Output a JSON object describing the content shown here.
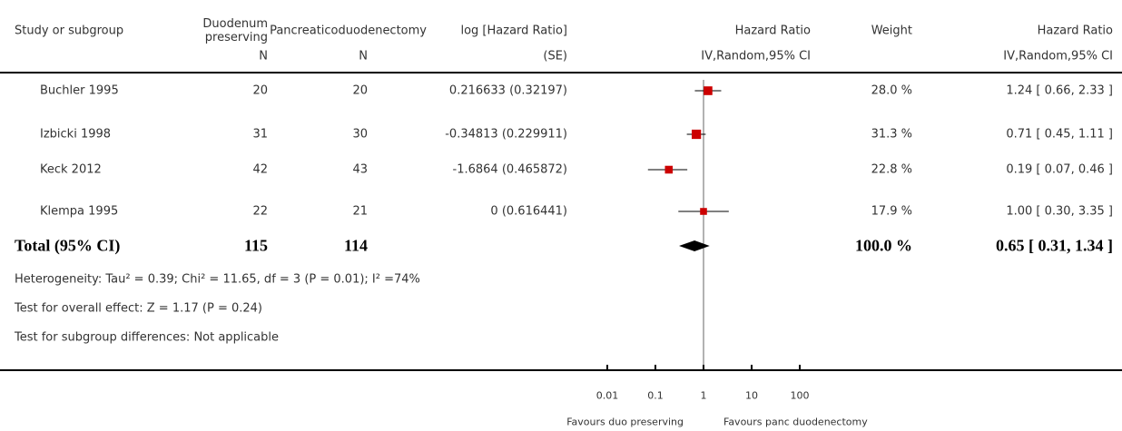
{
  "chart_data": {
    "type": "forest",
    "columns": {
      "study": "Study or subgroup",
      "group1": "Duodenum preserving",
      "group2": "Pancreaticoduodenectomy",
      "loghr": "log [Hazard Ratio]",
      "hr_plot": "Hazard Ratio",
      "weight": "Weight",
      "hr": "Hazard Ratio"
    },
    "subheaders": {
      "n1": "N",
      "n2": "N",
      "se": "(SE)",
      "plot_method": "IV,Random,95% CI",
      "hr_method": "IV,Random,95% CI"
    },
    "studies": [
      {
        "name": "Buchler 1995",
        "n1": 20,
        "n2": 20,
        "loghr_label": "0.216633 (0.32197)",
        "weight": 28.0,
        "weight_label": "28.0 %",
        "hr": 1.24,
        "ci": [
          0.66,
          2.33
        ],
        "hr_label": "1.24 [ 0.66, 2.33 ]"
      },
      {
        "name": "Izbicki 1998",
        "n1": 31,
        "n2": 30,
        "loghr_label": "-0.34813 (0.229911)",
        "weight": 31.3,
        "weight_label": "31.3 %",
        "hr": 0.71,
        "ci": [
          0.45,
          1.11
        ],
        "hr_label": "0.71 [ 0.45, 1.11 ]"
      },
      {
        "name": "Keck 2012",
        "n1": 42,
        "n2": 43,
        "loghr_label": "-1.6864 (0.465872)",
        "weight": 22.8,
        "weight_label": "22.8 %",
        "hr": 0.19,
        "ci": [
          0.07,
          0.46
        ],
        "hr_label": "0.19 [ 0.07, 0.46 ]"
      },
      {
        "name": "Klempa 1995",
        "n1": 22,
        "n2": 21,
        "loghr_label": "0 (0.616441)",
        "weight": 17.9,
        "weight_label": "17.9 %",
        "hr": 1.0,
        "ci": [
          0.3,
          3.35
        ],
        "hr_label": "1.00 [ 0.30, 3.35 ]"
      }
    ],
    "total": {
      "name": "Total (95% CI)",
      "n1": 115,
      "n2": 114,
      "weight": 100.0,
      "weight_label": "100.0 %",
      "hr": 0.65,
      "ci": [
        0.31,
        1.34
      ],
      "hr_label": "0.65 [ 0.31, 1.34 ]"
    },
    "notes": [
      "Heterogeneity: Tau² = 0.39; Chi² = 11.65, df = 3 (P = 0.01); I² =74%",
      "Test for overall effect: Z = 1.17 (P = 0.24)",
      "Test for subgroup differences: Not applicable"
    ],
    "xlim": [
      0.01,
      100
    ],
    "xticks": [
      0.01,
      0.1,
      1,
      10,
      100
    ],
    "log_x": true,
    "x_left_label": "Favours duo preserving",
    "x_right_label": "Favours panc duodenectomy",
    "color": "#cc0000"
  }
}
